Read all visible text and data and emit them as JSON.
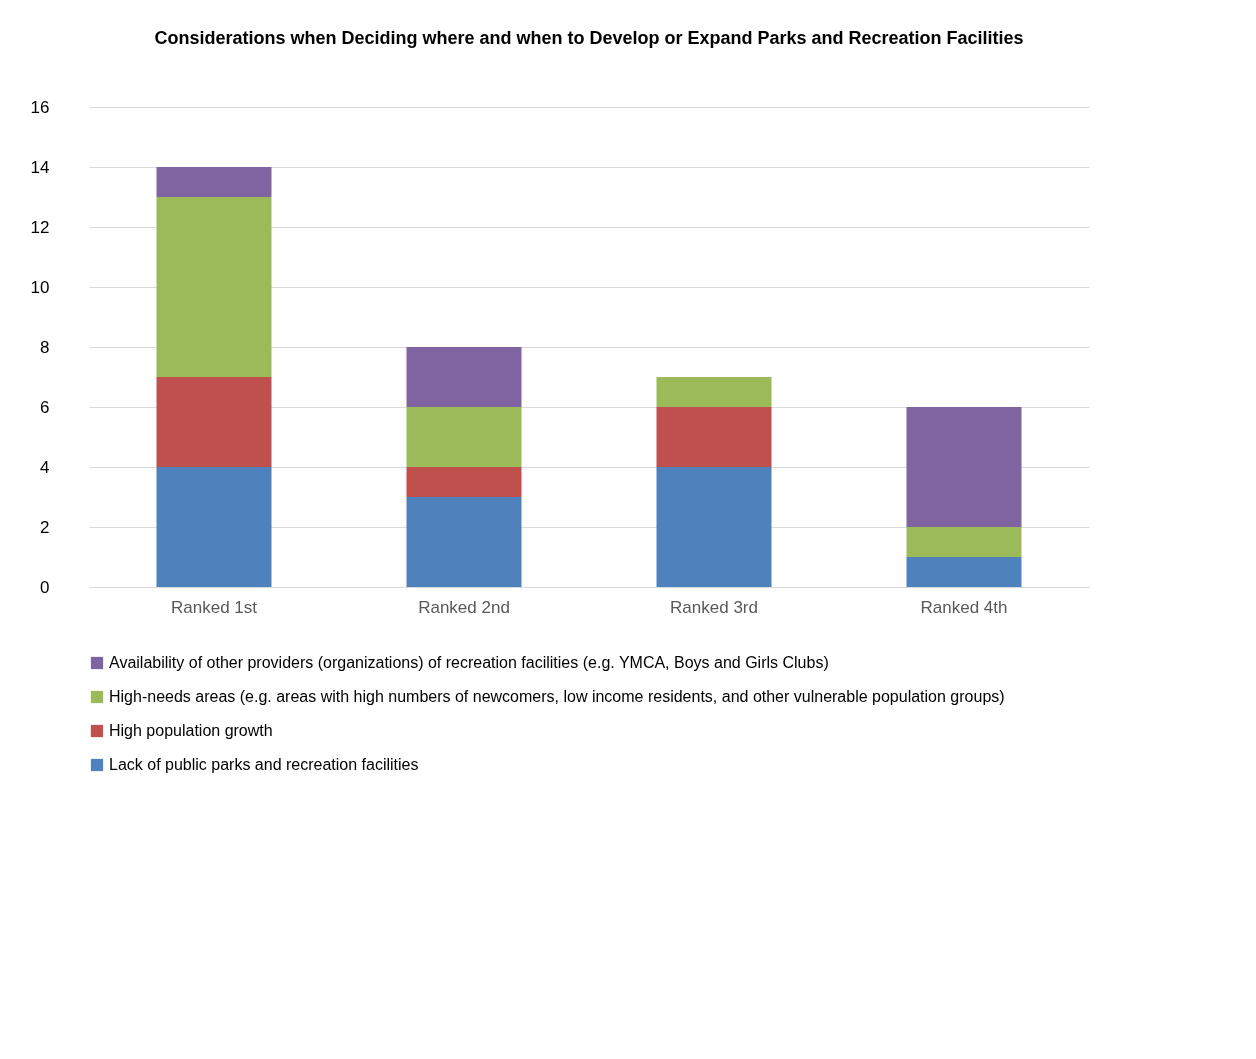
{
  "chart_data": {
    "type": "bar",
    "stacked": true,
    "title": "Considerations when Deciding where and when to Develop or Expand Parks and Recreation Facilities",
    "categories": [
      "Ranked 1st",
      "Ranked 2nd",
      "Ranked 3rd",
      "Ranked 4th"
    ],
    "series": [
      {
        "name": "Lack of public parks and recreation facilities",
        "color": "#4f81bd",
        "values": [
          4,
          3,
          4,
          1
        ]
      },
      {
        "name": "High population growth",
        "color": "#c0504d",
        "values": [
          3,
          1,
          2,
          0
        ]
      },
      {
        "name": "High-needs areas (e.g. areas with high numbers of newcomers, low income residents, and other vulnerable population groups)",
        "color": "#9bbb59",
        "values": [
          6,
          2,
          1,
          1
        ]
      },
      {
        "name": "Availability of other providers (organizations) of recreation facilities (e.g. YMCA, Boys and Girls Clubs)",
        "color": "#8064a2",
        "values": [
          1,
          2,
          0,
          4
        ]
      }
    ],
    "ylim": [
      0,
      16
    ],
    "yticks": [
      0,
      2,
      4,
      6,
      8,
      10,
      12,
      14,
      16
    ],
    "grid": "y",
    "legend": "bottom"
  }
}
